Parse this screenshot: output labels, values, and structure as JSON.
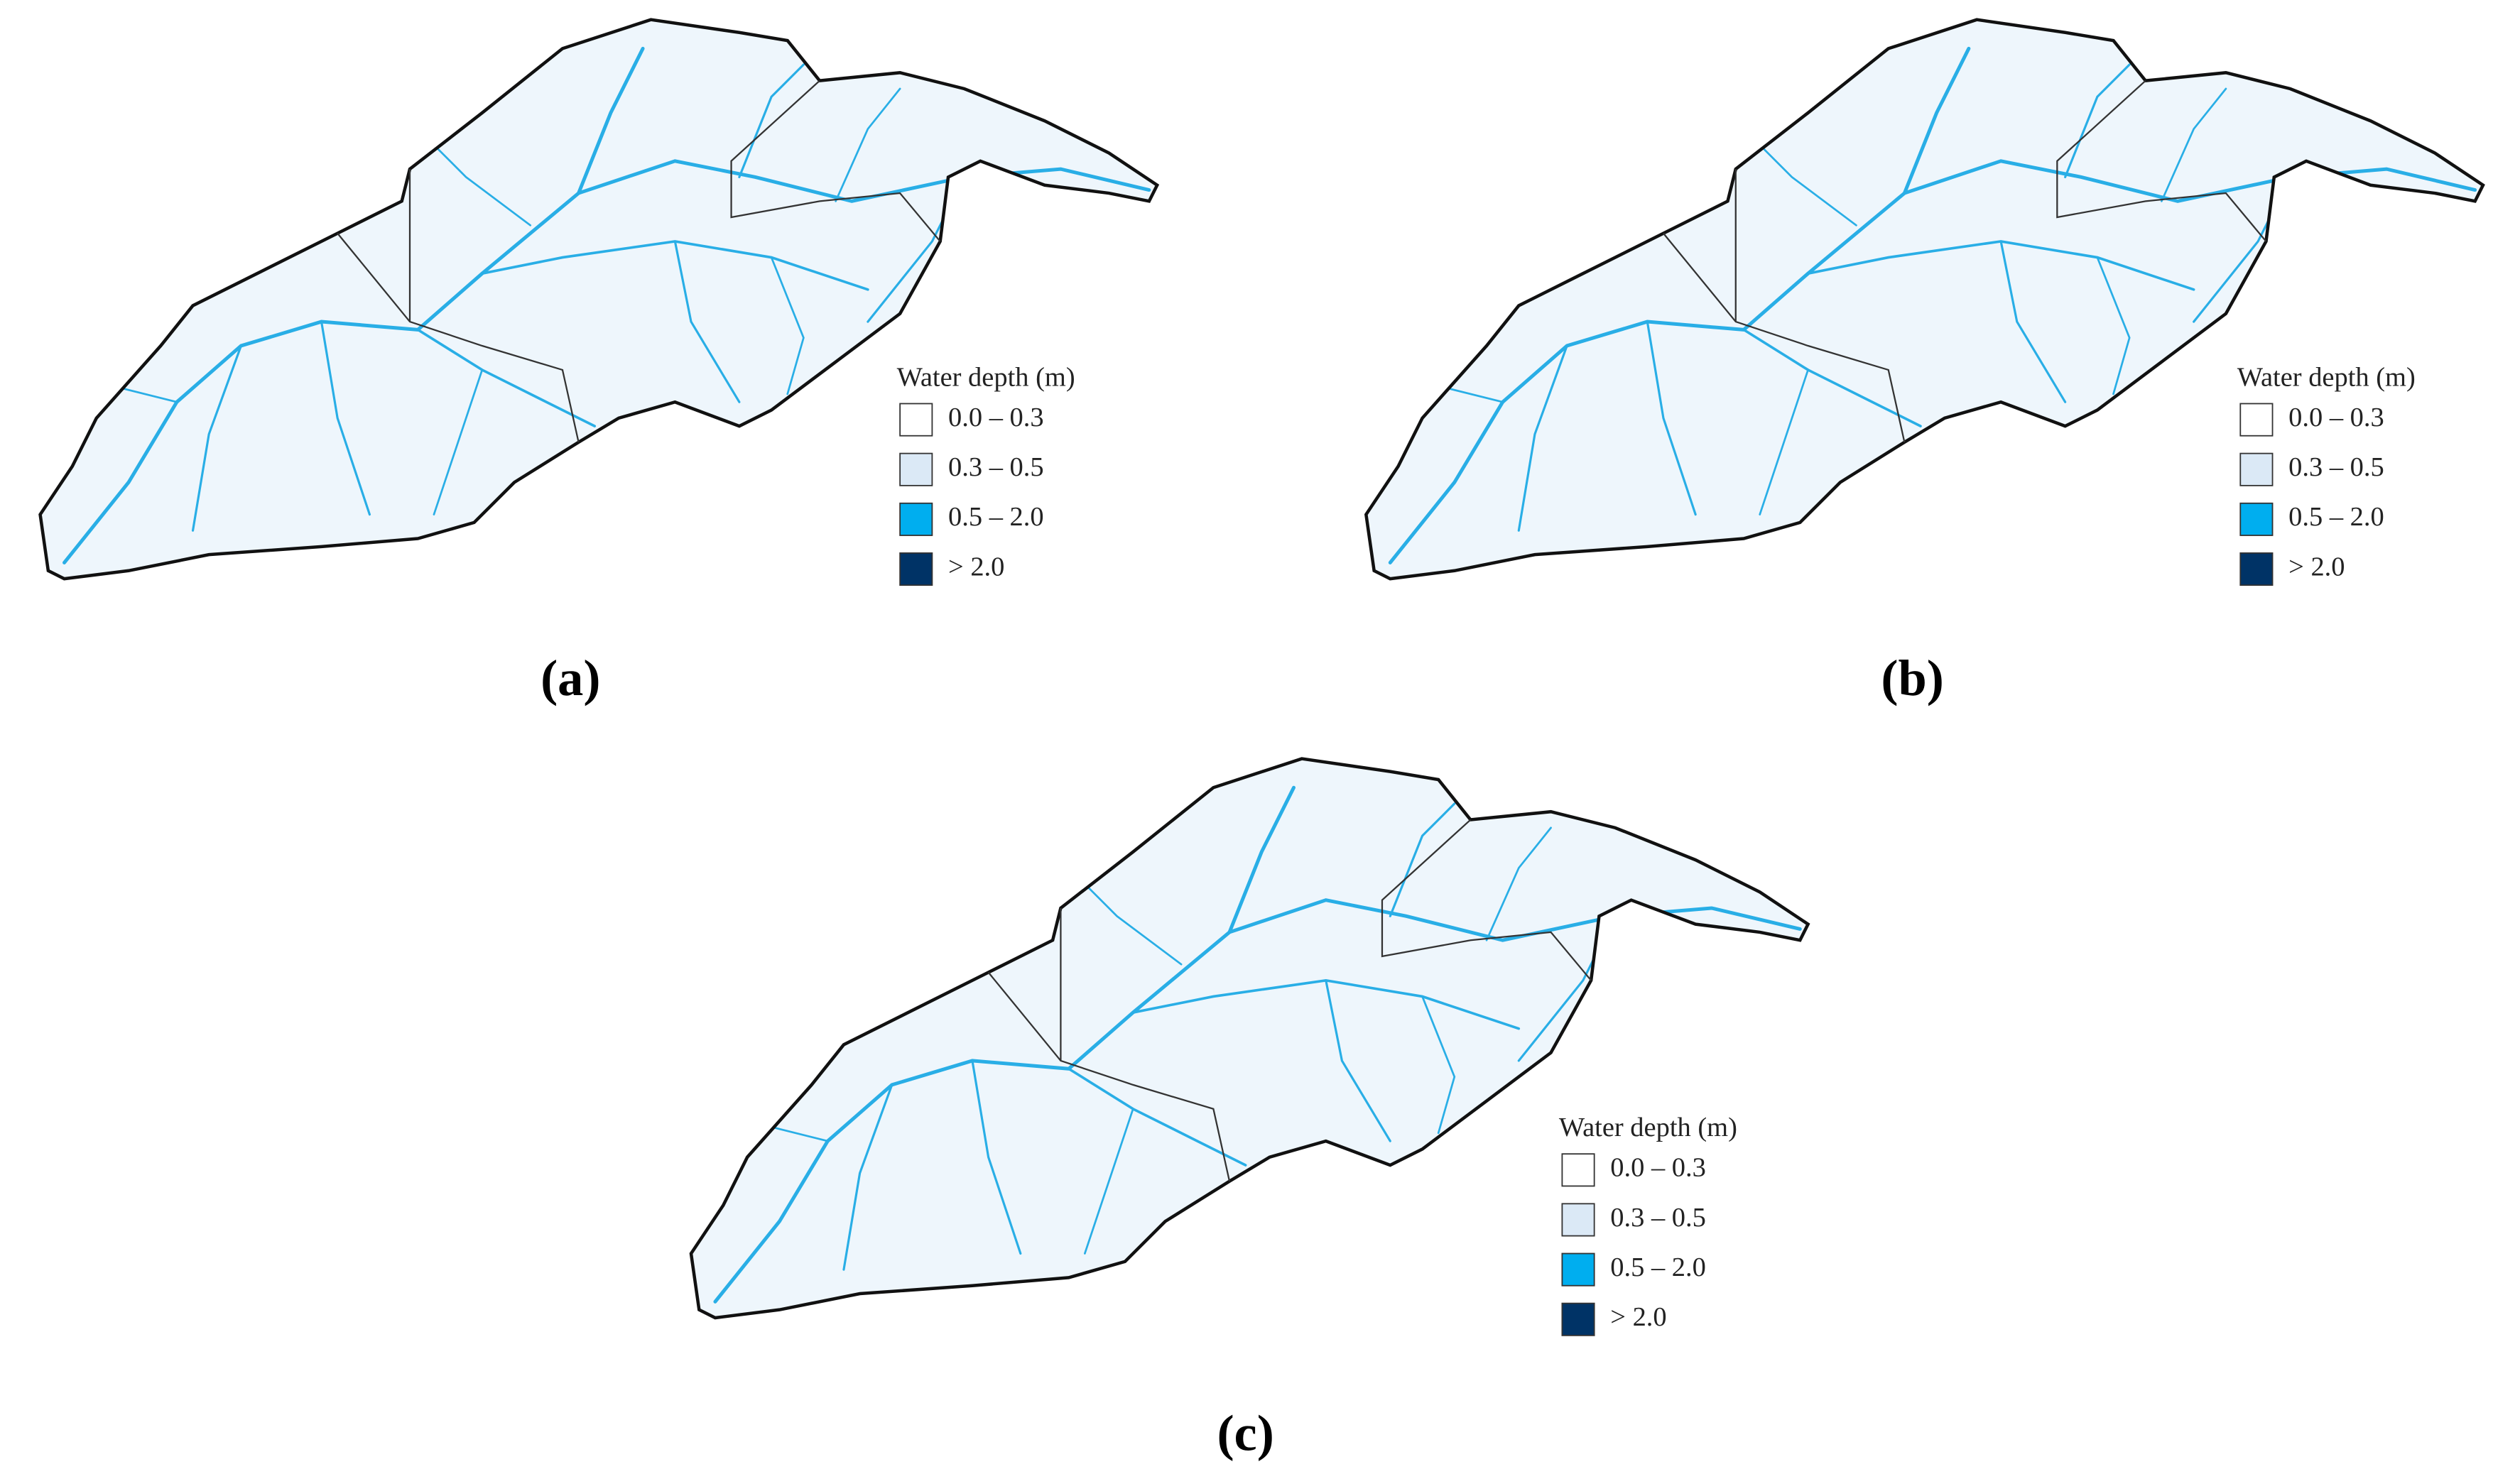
{
  "panels": [
    {
      "label": "(a)",
      "legend_title": "Water depth (m)",
      "legend": [
        {
          "label": "0.0 – 0.3",
          "color": "#ffffff"
        },
        {
          "label": "0.3 – 0.5",
          "color": "#dbe9f6"
        },
        {
          "label": "0.5 – 2.0",
          "color": "#00aeef"
        },
        {
          "label": "> 2.0",
          "color": "#003366"
        }
      ]
    },
    {
      "label": "(b)",
      "legend_title": "Water depth (m)",
      "legend": [
        {
          "label": "0.0 – 0.3",
          "color": "#ffffff"
        },
        {
          "label": "0.3 – 0.5",
          "color": "#dbe9f6"
        },
        {
          "label": "0.5 – 2.0",
          "color": "#00aeef"
        },
        {
          "label": "> 2.0",
          "color": "#003366"
        }
      ]
    },
    {
      "label": "(c)",
      "legend_title": "Water depth (m)",
      "legend": [
        {
          "label": "0.0 – 0.3",
          "color": "#ffffff"
        },
        {
          "label": "0.3 – 0.5",
          "color": "#dbe9f6"
        },
        {
          "label": "0.5 – 2.0",
          "color": "#00aeef"
        },
        {
          "label": "> 2.0",
          "color": "#003366"
        }
      ]
    }
  ]
}
